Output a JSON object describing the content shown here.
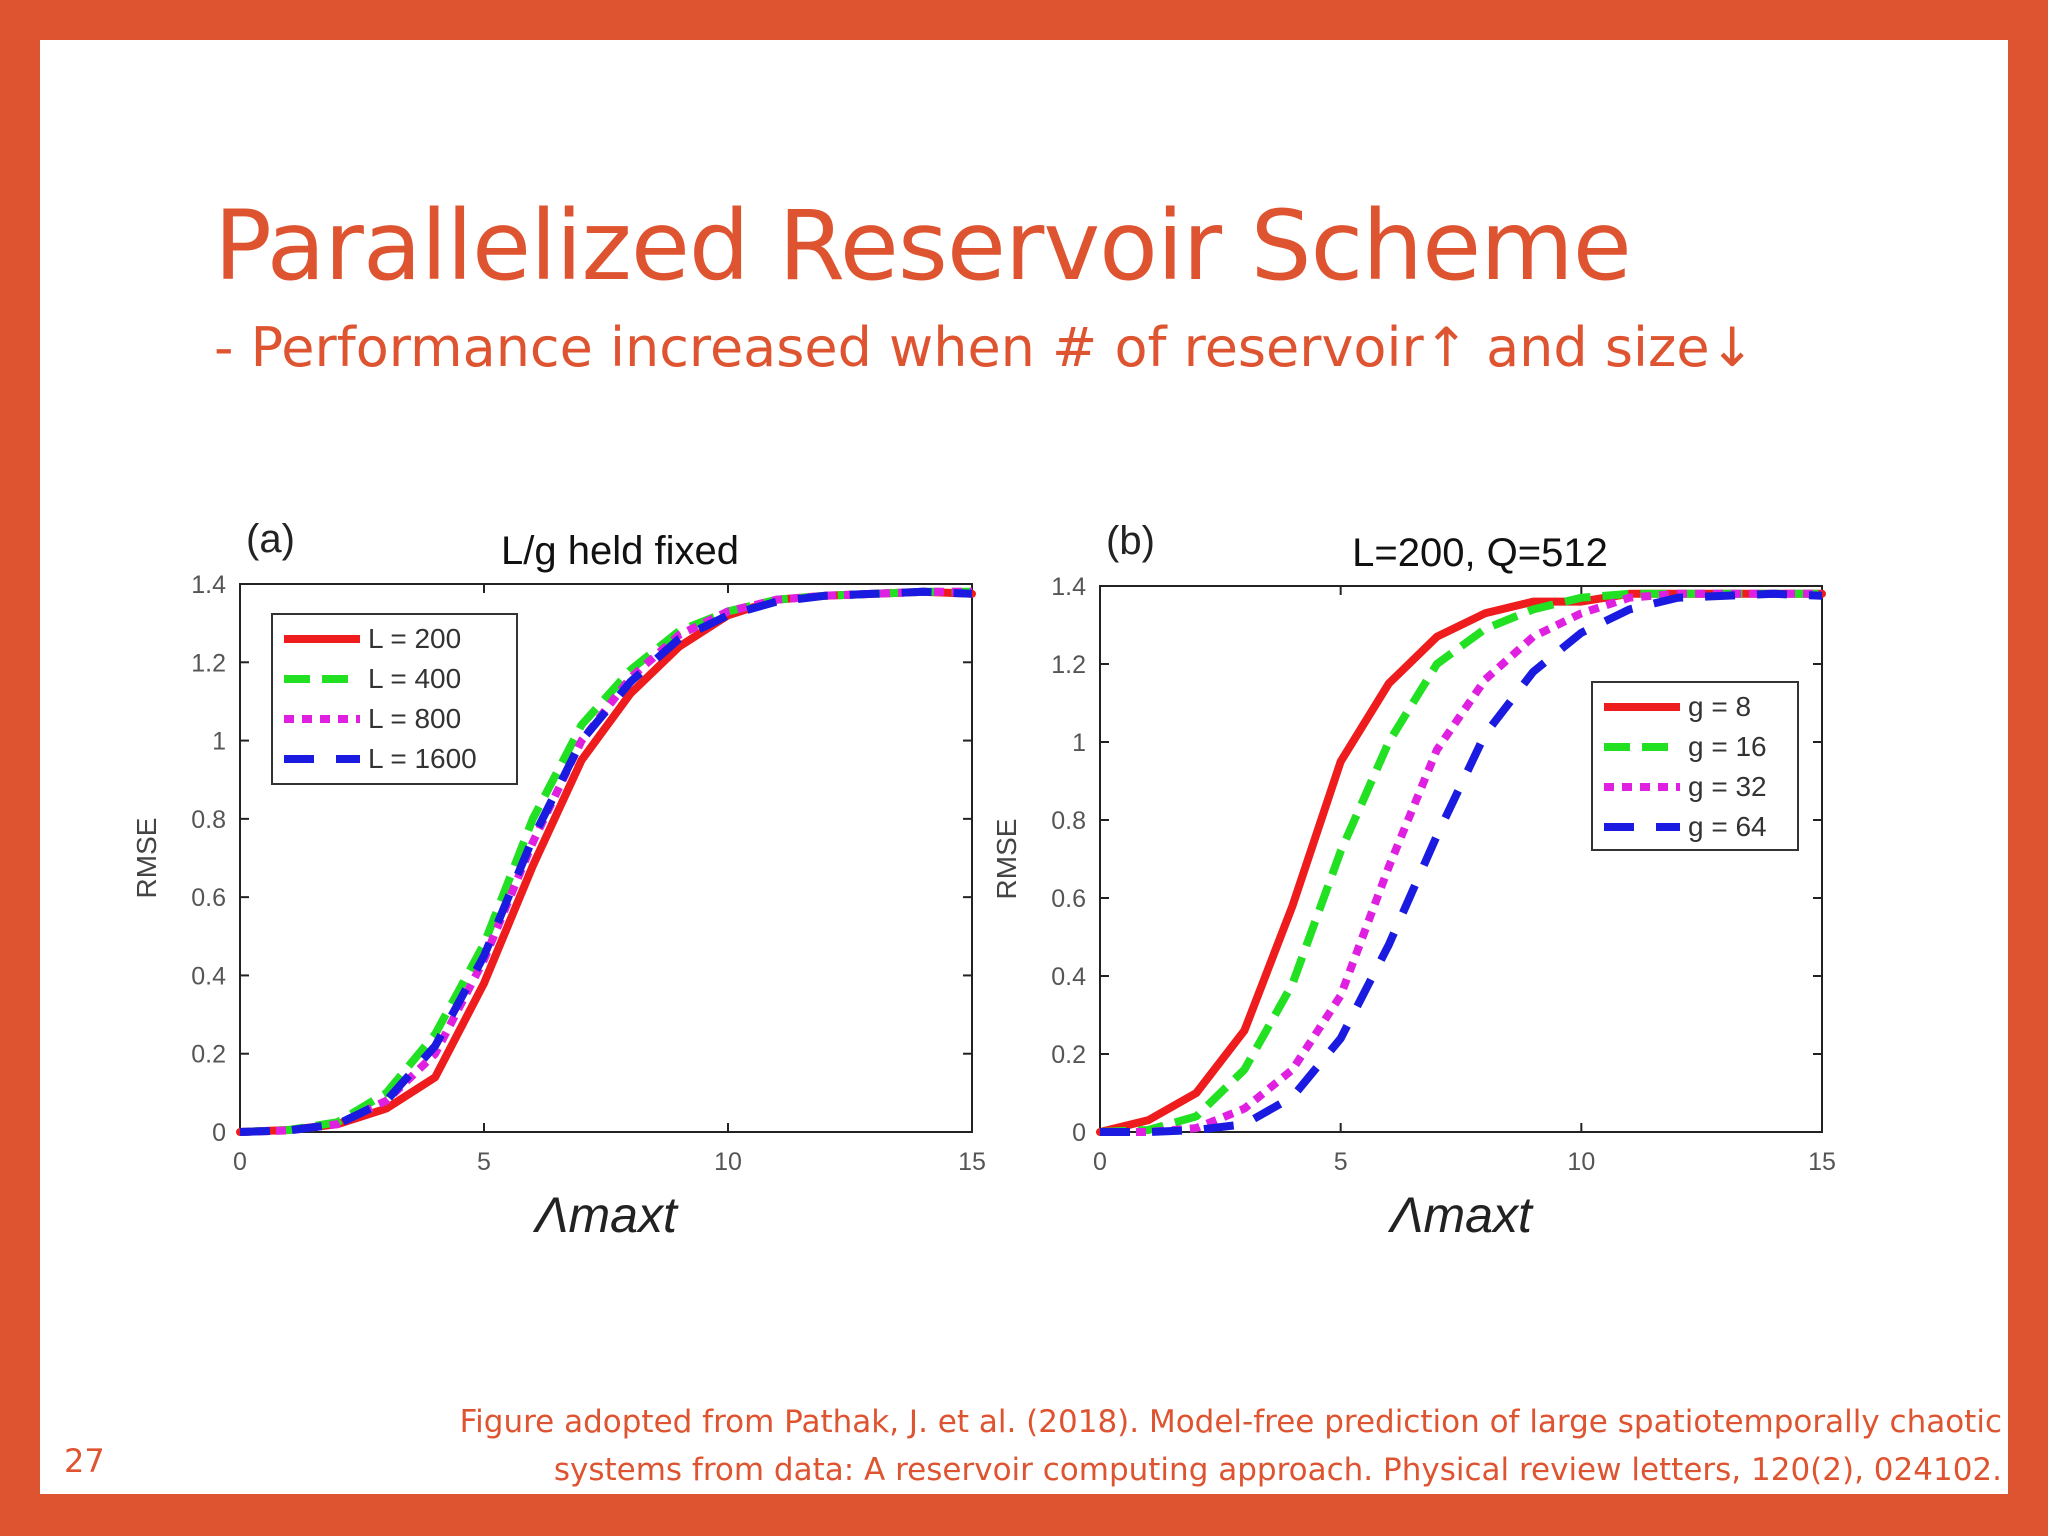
{
  "slide": {
    "title": "Parallelized Reservoir Scheme",
    "subtitle": "- Performance increased when # of reservoir↑ and size↓",
    "page_number": "27",
    "citation_line1": "Figure adopted from Pathak, J. et al. (2018). Model-free prediction of large spatiotemporally chaotic",
    "citation_line2": "systems from data: A reservoir computing approach. Physical review letters, 120(2), 024102.",
    "colors": {
      "accent": "#DF5430",
      "background": "#ffffff"
    }
  },
  "chart_data": [
    {
      "type": "line",
      "panel_label": "(a)",
      "title": "L/g held fixed",
      "xlabel": "Λmaxt",
      "ylabel": "RMSE",
      "xlim": [
        0,
        15
      ],
      "ylim": [
        0,
        1.4
      ],
      "xticks": [
        "0",
        "5",
        "10",
        "15"
      ],
      "yticks": [
        "0",
        "0.2",
        "0.4",
        "0.6",
        "0.8",
        "1",
        "1.2",
        "1.4"
      ],
      "legend_position": "top-left",
      "series": [
        {
          "name": "L = 200",
          "color": "#ee1c1c",
          "style": "solid",
          "x": [
            0,
            1,
            2,
            3,
            4,
            5,
            6,
            7,
            8,
            9,
            10,
            11,
            12,
            13,
            14,
            15
          ],
          "y": [
            0,
            0.005,
            0.02,
            0.06,
            0.14,
            0.38,
            0.68,
            0.95,
            1.12,
            1.24,
            1.32,
            1.36,
            1.37,
            1.375,
            1.38,
            1.375
          ]
        },
        {
          "name": "L = 400",
          "color": "#22e022",
          "style": "dashed",
          "x": [
            0,
            1,
            2,
            3,
            4,
            5,
            6,
            7,
            8,
            9,
            10,
            11,
            12,
            13,
            14,
            15
          ],
          "y": [
            0,
            0.005,
            0.025,
            0.1,
            0.25,
            0.48,
            0.8,
            1.04,
            1.18,
            1.28,
            1.33,
            1.36,
            1.37,
            1.375,
            1.38,
            1.38
          ]
        },
        {
          "name": "L = 800",
          "color": "#e020e0",
          "style": "dotted",
          "x": [
            0,
            1,
            2,
            3,
            4,
            5,
            6,
            7,
            8,
            9,
            10,
            11,
            12,
            13,
            14,
            15
          ],
          "y": [
            0,
            0.004,
            0.02,
            0.08,
            0.2,
            0.44,
            0.74,
            1.0,
            1.16,
            1.27,
            1.33,
            1.36,
            1.37,
            1.375,
            1.38,
            1.38
          ]
        },
        {
          "name": "L = 1600",
          "color": "#1a1ae0",
          "style": "longdash",
          "x": [
            0,
            1,
            2,
            3,
            4,
            5,
            6,
            7,
            8,
            9,
            10,
            11,
            12,
            13,
            14,
            15
          ],
          "y": [
            0,
            0.004,
            0.02,
            0.08,
            0.22,
            0.45,
            0.75,
            1.0,
            1.15,
            1.26,
            1.32,
            1.355,
            1.37,
            1.375,
            1.38,
            1.375
          ]
        }
      ]
    },
    {
      "type": "line",
      "panel_label": "(b)",
      "title": "L=200, Q=512",
      "xlabel": "Λmaxt",
      "ylabel": "RMSE",
      "xlim": [
        0,
        15
      ],
      "ylim": [
        0,
        1.4
      ],
      "xticks": [
        "0",
        "5",
        "10",
        "15"
      ],
      "yticks": [
        "0",
        "0.2",
        "0.4",
        "0.6",
        "0.8",
        "1",
        "1.2",
        "1.4"
      ],
      "legend_position": "right",
      "series": [
        {
          "name": "g = 8",
          "color": "#ee1c1c",
          "style": "solid",
          "x": [
            0,
            1,
            2,
            3,
            4,
            5,
            6,
            7,
            8,
            9,
            10,
            11,
            12,
            13,
            14,
            15
          ],
          "y": [
            0,
            0.03,
            0.1,
            0.26,
            0.58,
            0.95,
            1.15,
            1.27,
            1.33,
            1.36,
            1.36,
            1.38,
            1.38,
            1.38,
            1.38,
            1.38
          ]
        },
        {
          "name": "g = 16",
          "color": "#22e022",
          "style": "dashed",
          "x": [
            0,
            1,
            2,
            3,
            4,
            5,
            6,
            7,
            8,
            9,
            10,
            11,
            12,
            13,
            14,
            15
          ],
          "y": [
            0,
            0.005,
            0.04,
            0.16,
            0.38,
            0.72,
            1.0,
            1.2,
            1.29,
            1.34,
            1.37,
            1.38,
            1.38,
            1.38,
            1.38,
            1.38
          ]
        },
        {
          "name": "g = 32",
          "color": "#e020e0",
          "style": "dotted",
          "x": [
            0,
            1,
            2,
            3,
            4,
            5,
            6,
            7,
            8,
            9,
            10,
            11,
            12,
            13,
            14,
            15
          ],
          "y": [
            0,
            0,
            0.01,
            0.06,
            0.16,
            0.35,
            0.68,
            0.98,
            1.16,
            1.27,
            1.33,
            1.37,
            1.38,
            1.38,
            1.38,
            1.38
          ]
        },
        {
          "name": "g = 64",
          "color": "#1a1ae0",
          "style": "longdash",
          "x": [
            0,
            1,
            2,
            3,
            4,
            5,
            6,
            7,
            8,
            9,
            10,
            11,
            12,
            13,
            14,
            15
          ],
          "y": [
            0,
            0,
            0.005,
            0.02,
            0.09,
            0.24,
            0.48,
            0.76,
            1.02,
            1.18,
            1.28,
            1.34,
            1.37,
            1.375,
            1.38,
            1.375
          ]
        }
      ]
    }
  ]
}
